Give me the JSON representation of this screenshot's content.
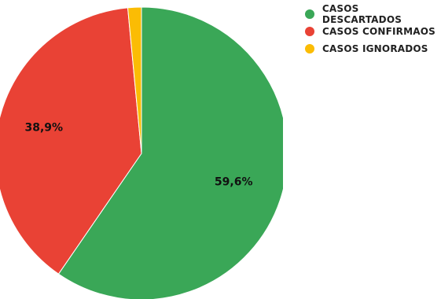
{
  "chart_data": {
    "type": "pie",
    "categories": [
      "CASOS DESCARTADOS",
      "CASOS CONFIRMAOS",
      "CASOS IGNORADOS"
    ],
    "values": [
      59.6,
      38.9,
      1.5
    ],
    "data_labels": [
      "59,6%",
      "38,9%",
      ""
    ],
    "colors": [
      "#3aa757",
      "#e94235",
      "#fbbc04"
    ],
    "legend_position": "top-right"
  }
}
